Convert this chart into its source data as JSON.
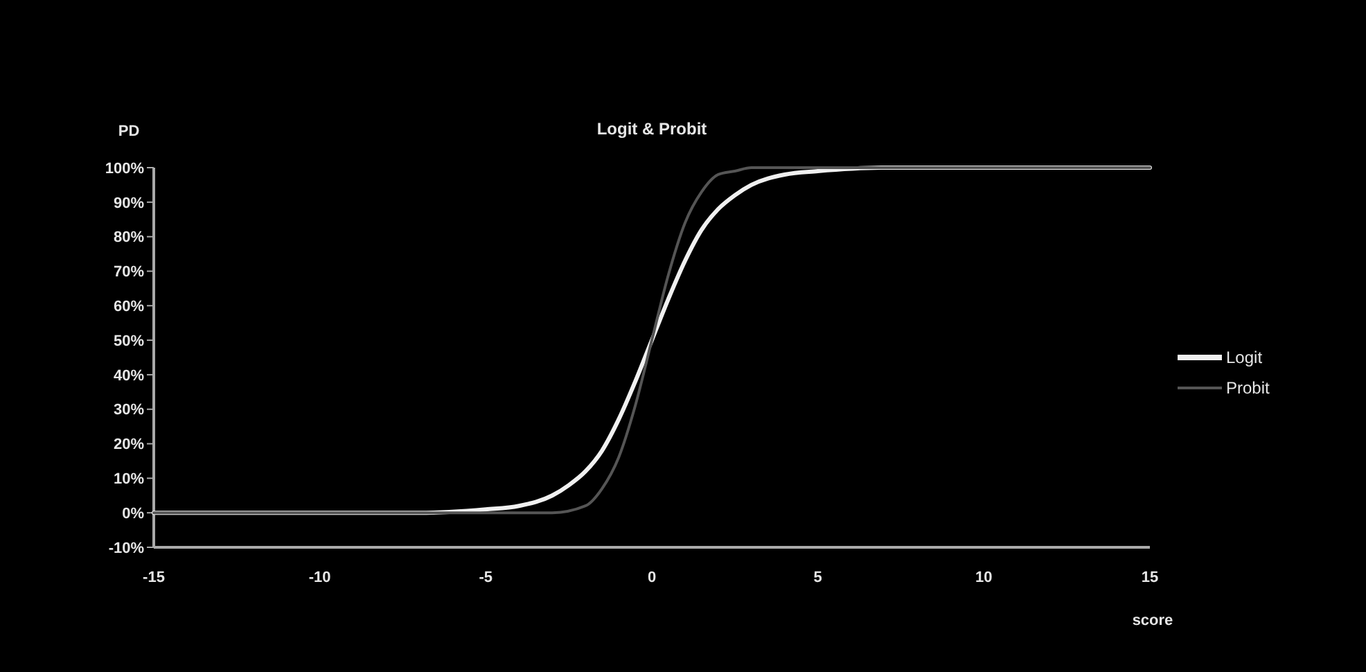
{
  "chart_data": {
    "type": "line",
    "title": "Logit & Probit",
    "xlabel": "score",
    "ylabel": "PD",
    "xlim": [
      -15,
      15
    ],
    "xticks": [
      -15,
      -10,
      -5,
      0,
      5,
      10,
      15
    ],
    "ylim": [
      -10,
      100
    ],
    "yticks": [
      {
        "value": -10,
        "label": "-10%"
      },
      {
        "value": 0,
        "label": "0%"
      },
      {
        "value": 10,
        "label": "10%"
      },
      {
        "value": 20,
        "label": "20%"
      },
      {
        "value": 30,
        "label": "30%"
      },
      {
        "value": 40,
        "label": "40%"
      },
      {
        "value": 50,
        "label": "50%"
      },
      {
        "value": 60,
        "label": "60%"
      },
      {
        "value": 70,
        "label": "70%"
      },
      {
        "value": 80,
        "label": "80%"
      },
      {
        "value": 90,
        "label": "90%"
      },
      {
        "value": 100,
        "label": "100%"
      }
    ],
    "legend": "right",
    "grid": false,
    "marker": "none",
    "series": [
      {
        "name": "Logit",
        "color": "#f0f0f0",
        "x": [
          -15,
          -10,
          -7,
          -5,
          -4,
          -3,
          -2.5,
          -2,
          -1.5,
          -1,
          -0.5,
          0,
          0.5,
          1,
          1.5,
          2,
          2.5,
          3,
          4,
          5,
          7,
          10,
          15
        ],
        "values": [
          0,
          0,
          0,
          1,
          2,
          5,
          8,
          12,
          18,
          27,
          38,
          50,
          62,
          73,
          82,
          88,
          92,
          95,
          98,
          99,
          100,
          100,
          100
        ]
      },
      {
        "name": "Probit",
        "color": "#555555",
        "x": [
          -15,
          -5,
          -3,
          -2,
          -1.5,
          -1,
          -0.5,
          0,
          0.5,
          1,
          1.5,
          2,
          2.5,
          3,
          5,
          15
        ],
        "values": [
          0,
          0,
          0,
          2,
          7,
          16,
          31,
          50,
          69,
          84,
          93,
          98,
          99,
          100,
          100,
          100
        ]
      }
    ]
  }
}
